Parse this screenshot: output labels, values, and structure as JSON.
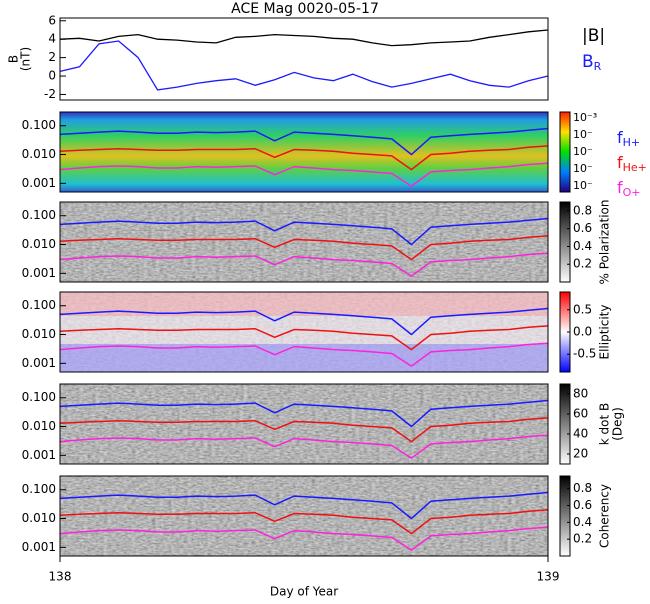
{
  "chart_data": [
    {
      "type": "line",
      "title": "ACE Mag 0020-05-17",
      "ylabel": [
        "B",
        "(nT)"
      ],
      "x": [
        138,
        138.04,
        138.08,
        138.12,
        138.16,
        138.2,
        138.24,
        138.28,
        138.32,
        138.36,
        138.4,
        138.44,
        138.48,
        138.52,
        138.56,
        138.6,
        138.64,
        138.68,
        138.72,
        138.76,
        138.8,
        138.84,
        138.88,
        138.92,
        138.96,
        139
      ],
      "xlim": [
        138,
        139
      ],
      "ylim": [
        -2.6,
        6.3
      ],
      "yticks": [
        -2,
        0,
        2,
        4,
        6
      ],
      "series": [
        {
          "name": "|B|",
          "color": "#000000",
          "values": [
            4.0,
            4.1,
            3.8,
            4.3,
            4.5,
            4.0,
            3.9,
            3.7,
            3.6,
            4.2,
            4.3,
            4.5,
            4.4,
            4.3,
            4.1,
            4.0,
            3.6,
            3.3,
            3.4,
            3.6,
            3.7,
            3.8,
            4.2,
            4.5,
            4.8,
            5.0
          ]
        },
        {
          "name": "B_R",
          "color": "#1a1aff",
          "values": [
            0.5,
            1.0,
            3.5,
            3.8,
            2.0,
            -1.5,
            -1.2,
            -0.8,
            -0.5,
            -0.3,
            -1.0,
            -0.4,
            0.4,
            -0.2,
            -0.5,
            0.2,
            -0.6,
            -1.2,
            -0.8,
            -0.3,
            0.2,
            -0.5,
            -1.0,
            -1.2,
            -0.5,
            0.0
          ]
        }
      ]
    },
    {
      "type": "spectrogram",
      "xlabel": "Day of Year",
      "x": [
        138,
        138.04,
        138.08,
        138.12,
        138.16,
        138.2,
        138.24,
        138.28,
        138.32,
        138.36,
        138.4,
        138.44,
        138.48,
        138.52,
        138.56,
        138.6,
        138.64,
        138.68,
        138.72,
        138.76,
        138.8,
        138.84,
        138.88,
        138.92,
        138.96,
        139
      ],
      "xlim": [
        138,
        139
      ],
      "xticks": [
        138,
        139
      ],
      "log": true,
      "ylim": [
        0.0005,
        0.3
      ],
      "yticks": [
        {
          "value": 0.1,
          "label": "0.100"
        },
        {
          "value": 0.01,
          "label": "0.010"
        },
        0.001
      ],
      "series": [
        {
          "name": "f_H+",
          "color": "#1a1aff",
          "values": [
            0.05,
            0.055,
            0.06,
            0.065,
            0.06,
            0.055,
            0.055,
            0.06,
            0.058,
            0.06,
            0.065,
            0.03,
            0.06,
            0.055,
            0.05,
            0.045,
            0.04,
            0.035,
            0.01,
            0.04,
            0.045,
            0.05,
            0.055,
            0.06,
            0.07,
            0.08
          ]
        },
        {
          "name": "f_He+",
          "color": "#ee1111",
          "values": [
            0.013,
            0.014,
            0.015,
            0.016,
            0.015,
            0.014,
            0.014,
            0.015,
            0.015,
            0.015,
            0.016,
            0.008,
            0.015,
            0.014,
            0.013,
            0.011,
            0.01,
            0.009,
            0.003,
            0.01,
            0.011,
            0.013,
            0.014,
            0.015,
            0.018,
            0.02
          ]
        },
        {
          "name": "f_O+",
          "color": "#ff22dd",
          "values": [
            0.003,
            0.0034,
            0.0038,
            0.004,
            0.0038,
            0.0034,
            0.0034,
            0.0038,
            0.0036,
            0.0038,
            0.004,
            0.002,
            0.0038,
            0.0034,
            0.003,
            0.0028,
            0.0025,
            0.0022,
            0.0008,
            0.0025,
            0.0028,
            0.003,
            0.0034,
            0.0038,
            0.0045,
            0.005
          ]
        }
      ],
      "panels": [
        {
          "colormap": "rainbow",
          "colorbar_labels": [
            "10⁻³",
            "10⁻",
            "10⁻",
            "10⁻",
            "10⁻"
          ]
        },
        {
          "colormap": "gray",
          "colorbar_label": [
            "% Polarization"
          ],
          "clim": [
            0,
            0.9
          ],
          "cticks": [
            0.2,
            0.4,
            0.6,
            0.8
          ]
        },
        {
          "colormap": "bwr",
          "colorbar_label": [
            "Ellipticity"
          ],
          "clim": [
            -0.9,
            0.9
          ],
          "cticks": [
            -0.5,
            {
              "value": 0,
              "label": "0.0"
            },
            0.5
          ]
        },
        {
          "colormap": "gray",
          "colorbar_label": [
            "k dot B",
            "(Deg)"
          ],
          "clim": [
            10,
            90
          ],
          "cticks": [
            20,
            40,
            60,
            80
          ]
        },
        {
          "colormap": "gray",
          "colorbar_label": [
            "Coherency"
          ],
          "clim": [
            0,
            0.95
          ],
          "cticks": [
            0.2,
            0.4,
            0.6,
            0.8
          ]
        }
      ]
    }
  ]
}
